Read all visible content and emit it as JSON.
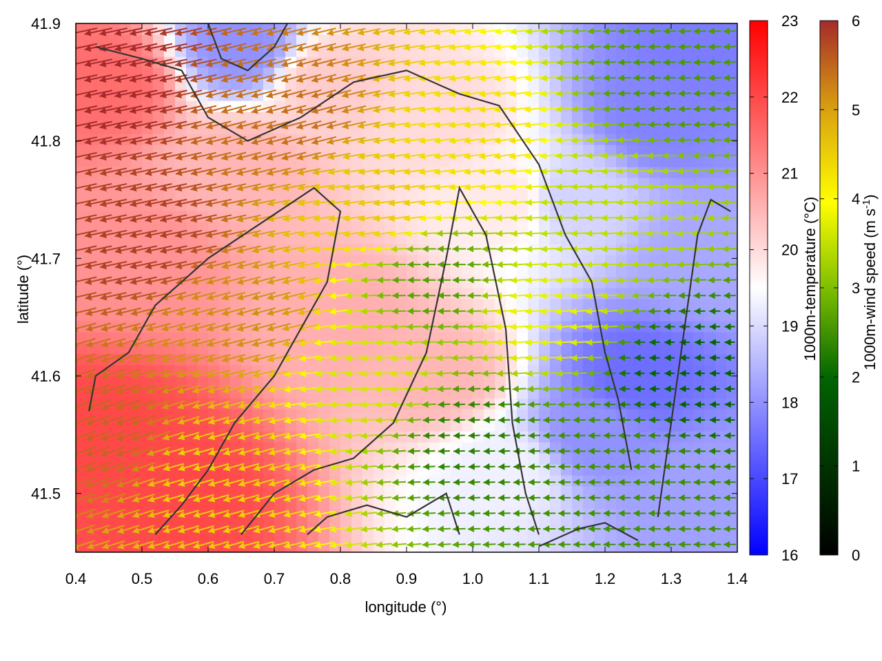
{
  "chart_data": {
    "type": "heatmap",
    "xlabel": "longitude (°)",
    "ylabel": "latitude (°)",
    "xlim": [
      0.4,
      1.4
    ],
    "ylim": [
      41.45,
      41.9
    ],
    "x_ticks": [
      "0.4",
      "0.5",
      "0.6",
      "0.7",
      "0.8",
      "0.9",
      "1.0",
      "1.1",
      "1.2",
      "1.3",
      "1.4"
    ],
    "y_ticks": [
      "41.5",
      "41.6",
      "41.7",
      "41.8",
      "41.9"
    ],
    "temperature_colorbar": {
      "label": "1000m-temperature (°C)",
      "range": [
        16,
        23
      ],
      "ticks": [
        "16",
        "17",
        "18",
        "19",
        "20",
        "21",
        "22",
        "23"
      ],
      "colors": [
        "#0000ff",
        "#ffffff",
        "#ff0000"
      ]
    },
    "wind_colorbar": {
      "label_main": "1000m-wind speed (m s",
      "label_exponent": "-1",
      "label_close": ")",
      "range": [
        0,
        6
      ],
      "ticks": [
        "0",
        "1",
        "2",
        "3",
        "4",
        "5",
        "6"
      ],
      "colors": [
        "#000000",
        "#006400",
        "#7fbf00",
        "#ffff00",
        "#dba30f",
        "#a52a2a"
      ]
    },
    "temperature_field": [
      {
        "lon": 0.45,
        "lat": 41.85,
        "t": 21.5
      },
      {
        "lon": 0.45,
        "lat": 41.55,
        "t": 22.0
      },
      {
        "lon": 0.55,
        "lat": 41.5,
        "t": 22.0
      },
      {
        "lon": 0.5,
        "lat": 41.7,
        "t": 21.0
      },
      {
        "lon": 0.65,
        "lat": 41.78,
        "t": 20.5
      },
      {
        "lon": 0.65,
        "lat": 41.88,
        "t": 18.0
      },
      {
        "lon": 0.8,
        "lat": 41.65,
        "t": 20.6
      },
      {
        "lon": 0.78,
        "lat": 41.85,
        "t": 20.2
      },
      {
        "lon": 0.95,
        "lat": 41.6,
        "t": 20.5
      },
      {
        "lon": 0.95,
        "lat": 41.82,
        "t": 20.0
      },
      {
        "lon": 1.05,
        "lat": 41.52,
        "t": 19.3
      },
      {
        "lon": 1.05,
        "lat": 41.75,
        "t": 19.8
      },
      {
        "lon": 1.18,
        "lat": 41.55,
        "t": 18.0
      },
      {
        "lon": 1.15,
        "lat": 41.75,
        "t": 18.9
      },
      {
        "lon": 1.25,
        "lat": 41.6,
        "t": 17.5
      },
      {
        "lon": 1.28,
        "lat": 41.82,
        "t": 17.8
      },
      {
        "lon": 1.35,
        "lat": 41.5,
        "t": 18.2
      },
      {
        "lon": 1.35,
        "lat": 41.7,
        "t": 18.3
      },
      {
        "lon": 1.35,
        "lat": 41.88,
        "t": 17.7
      }
    ],
    "wind_field": [
      {
        "lon": 0.45,
        "lat": 41.85,
        "speed": 6.0,
        "dir_deg": 192
      },
      {
        "lon": 0.45,
        "lat": 41.55,
        "speed": 5.4,
        "dir_deg": 200
      },
      {
        "lon": 0.5,
        "lat": 41.72,
        "speed": 5.8,
        "dir_deg": 192
      },
      {
        "lon": 0.6,
        "lat": 41.52,
        "speed": 4.2,
        "dir_deg": 196
      },
      {
        "lon": 0.65,
        "lat": 41.65,
        "speed": 5.0,
        "dir_deg": 195
      },
      {
        "lon": 0.72,
        "lat": 41.82,
        "speed": 5.3,
        "dir_deg": 195
      },
      {
        "lon": 0.85,
        "lat": 41.6,
        "speed": 3.2,
        "dir_deg": 185
      },
      {
        "lon": 0.85,
        "lat": 41.75,
        "speed": 4.3,
        "dir_deg": 188
      },
      {
        "lon": 0.95,
        "lat": 41.68,
        "speed": 2.0,
        "dir_deg": 180
      },
      {
        "lon": 1.0,
        "lat": 41.55,
        "speed": 1.6,
        "dir_deg": 182
      },
      {
        "lon": 1.0,
        "lat": 41.8,
        "speed": 4.0,
        "dir_deg": 188
      },
      {
        "lon": 1.1,
        "lat": 41.65,
        "speed": 3.4,
        "dir_deg": 185
      },
      {
        "lon": 1.2,
        "lat": 41.75,
        "speed": 3.0,
        "dir_deg": 183
      },
      {
        "lon": 1.22,
        "lat": 41.52,
        "speed": 1.8,
        "dir_deg": 180
      },
      {
        "lon": 1.32,
        "lat": 41.6,
        "speed": 1.2,
        "dir_deg": 180
      },
      {
        "lon": 1.3,
        "lat": 41.85,
        "speed": 1.9,
        "dir_deg": 182
      }
    ],
    "contours": [
      [
        [
          0.52,
          41.465
        ],
        [
          0.56,
          41.49
        ],
        [
          0.6,
          41.52
        ],
        [
          0.64,
          41.56
        ],
        [
          0.7,
          41.6
        ],
        [
          0.74,
          41.64
        ],
        [
          0.78,
          41.68
        ],
        [
          0.8,
          41.74
        ],
        [
          0.76,
          41.76
        ],
        [
          0.68,
          41.73
        ],
        [
          0.6,
          41.7
        ],
        [
          0.52,
          41.66
        ],
        [
          0.48,
          41.62
        ],
        [
          0.43,
          41.6
        ],
        [
          0.42,
          41.57
        ]
      ],
      [
        [
          0.65,
          41.465
        ],
        [
          0.7,
          41.5
        ],
        [
          0.76,
          41.52
        ],
        [
          0.82,
          41.53
        ],
        [
          0.88,
          41.56
        ],
        [
          0.93,
          41.62
        ],
        [
          0.96,
          41.7
        ],
        [
          0.98,
          41.76
        ],
        [
          1.02,
          41.72
        ],
        [
          1.05,
          41.64
        ],
        [
          1.06,
          41.56
        ],
        [
          1.08,
          41.5
        ],
        [
          1.1,
          41.465
        ]
      ],
      [
        [
          0.75,
          41.465
        ],
        [
          0.78,
          41.48
        ],
        [
          0.84,
          41.49
        ],
        [
          0.9,
          41.48
        ],
        [
          0.96,
          41.5
        ],
        [
          0.98,
          41.465
        ]
      ],
      [
        [
          0.43,
          41.88
        ],
        [
          0.5,
          41.87
        ],
        [
          0.56,
          41.86
        ],
        [
          0.6,
          41.82
        ],
        [
          0.66,
          41.8
        ],
        [
          0.74,
          41.82
        ],
        [
          0.82,
          41.85
        ],
        [
          0.9,
          41.86
        ],
        [
          0.98,
          41.84
        ],
        [
          1.04,
          41.83
        ],
        [
          1.1,
          41.78
        ],
        [
          1.14,
          41.72
        ],
        [
          1.18,
          41.68
        ],
        [
          1.2,
          41.62
        ],
        [
          1.22,
          41.58
        ],
        [
          1.24,
          41.52
        ]
      ],
      [
        [
          0.6,
          41.9
        ],
        [
          0.62,
          41.87
        ],
        [
          0.66,
          41.86
        ],
        [
          0.7,
          41.88
        ],
        [
          0.72,
          41.9
        ]
      ],
      [
        [
          1.28,
          41.48
        ],
        [
          1.3,
          41.56
        ],
        [
          1.32,
          41.64
        ],
        [
          1.34,
          41.72
        ],
        [
          1.36,
          41.75
        ],
        [
          1.39,
          41.74
        ]
      ],
      [
        [
          1.1,
          41.455
        ],
        [
          1.16,
          41.47
        ],
        [
          1.2,
          41.475
        ],
        [
          1.25,
          41.46
        ]
      ]
    ]
  }
}
